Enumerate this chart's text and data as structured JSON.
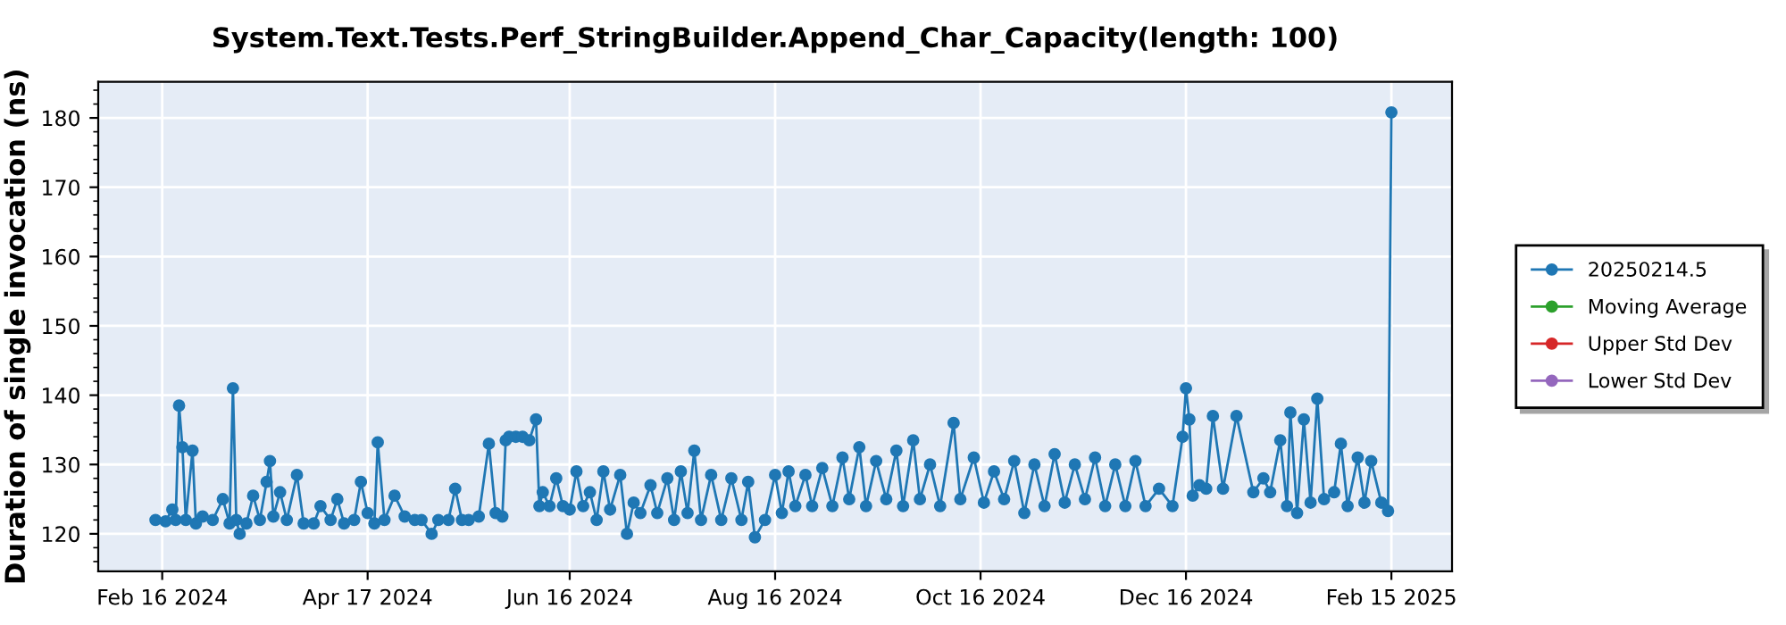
{
  "chart_data": {
    "type": "line",
    "title": "System.Text.Tests.Perf_StringBuilder.Append_Char_Capacity(length: 100)",
    "ylabel": "Duration of single invocation (ns)",
    "x": [
      "2024-02-14",
      "2024-02-17",
      "2024-02-19",
      "2024-02-20",
      "2024-02-21",
      "2024-02-22",
      "2024-02-23",
      "2024-02-25",
      "2024-02-26",
      "2024-02-28",
      "2024-03-02",
      "2024-03-05",
      "2024-03-07",
      "2024-03-08",
      "2024-03-09",
      "2024-03-10",
      "2024-03-12",
      "2024-03-14",
      "2024-03-16",
      "2024-03-18",
      "2024-03-19",
      "2024-03-20",
      "2024-03-22",
      "2024-03-24",
      "2024-03-27",
      "2024-03-29",
      "2024-04-01",
      "2024-04-03",
      "2024-04-06",
      "2024-04-08",
      "2024-04-10",
      "2024-04-13",
      "2024-04-15",
      "2024-04-17",
      "2024-04-19",
      "2024-04-20",
      "2024-04-22",
      "2024-04-25",
      "2024-04-28",
      "2024-05-01",
      "2024-05-03",
      "2024-05-06",
      "2024-05-08",
      "2024-05-11",
      "2024-05-13",
      "2024-05-15",
      "2024-05-17",
      "2024-05-20",
      "2024-05-23",
      "2024-05-25",
      "2024-05-27",
      "2024-05-28",
      "2024-05-29",
      "2024-05-31",
      "2024-06-02",
      "2024-06-04",
      "2024-06-06",
      "2024-06-07",
      "2024-06-08",
      "2024-06-10",
      "2024-06-12",
      "2024-06-14",
      "2024-06-16",
      "2024-06-18",
      "2024-06-20",
      "2024-06-22",
      "2024-06-24",
      "2024-06-26",
      "2024-06-28",
      "2024-07-01",
      "2024-07-03",
      "2024-07-05",
      "2024-07-07",
      "2024-07-10",
      "2024-07-12",
      "2024-07-15",
      "2024-07-17",
      "2024-07-19",
      "2024-07-21",
      "2024-07-23",
      "2024-07-25",
      "2024-07-28",
      "2024-07-31",
      "2024-08-03",
      "2024-08-06",
      "2024-08-08",
      "2024-08-10",
      "2024-08-13",
      "2024-08-16",
      "2024-08-18",
      "2024-08-20",
      "2024-08-22",
      "2024-08-25",
      "2024-08-27",
      "2024-08-30",
      "2024-09-02",
      "2024-09-05",
      "2024-09-07",
      "2024-09-10",
      "2024-09-12",
      "2024-09-15",
      "2024-09-18",
      "2024-09-21",
      "2024-09-23",
      "2024-09-26",
      "2024-09-28",
      "2024-10-01",
      "2024-10-04",
      "2024-10-08",
      "2024-10-10",
      "2024-10-14",
      "2024-10-17",
      "2024-10-20",
      "2024-10-23",
      "2024-10-26",
      "2024-10-29",
      "2024-11-01",
      "2024-11-04",
      "2024-11-07",
      "2024-11-10",
      "2024-11-13",
      "2024-11-16",
      "2024-11-19",
      "2024-11-22",
      "2024-11-25",
      "2024-11-28",
      "2024-12-01",
      "2024-12-04",
      "2024-12-08",
      "2024-12-12",
      "2024-12-15",
      "2024-12-16",
      "2024-12-17",
      "2024-12-18",
      "2024-12-20",
      "2024-12-22",
      "2024-12-24",
      "2024-12-27",
      "2024-12-31",
      "2025-01-05",
      "2025-01-08",
      "2025-01-10",
      "2025-01-13",
      "2025-01-15",
      "2025-01-16",
      "2025-01-18",
      "2025-01-20",
      "2025-01-22",
      "2025-01-24",
      "2025-01-26",
      "2025-01-29",
      "2025-01-31",
      "2025-02-02",
      "2025-02-05",
      "2025-02-07",
      "2025-02-09",
      "2025-02-12",
      "2025-02-14",
      "2025-02-15"
    ],
    "series": [
      {
        "name": "20250214.5",
        "color": "#1f77b4",
        "values": [
          122,
          121.8,
          123.5,
          122,
          138.5,
          132.5,
          122,
          132,
          121.5,
          122.5,
          122,
          125,
          121.5,
          141,
          122,
          120,
          121.5,
          125.5,
          122,
          127.5,
          130.5,
          122.5,
          126,
          122,
          128.5,
          121.5,
          121.5,
          124,
          122,
          125,
          121.5,
          122,
          127.5,
          123,
          121.5,
          133.2,
          122,
          125.5,
          122.5,
          122,
          122,
          120,
          122,
          122,
          126.5,
          122,
          122,
          122.5,
          133,
          123,
          122.5,
          133.5,
          134,
          134,
          134,
          133.5,
          136.5,
          124,
          126,
          124,
          128,
          124,
          123.5,
          129,
          124,
          126,
          122,
          129,
          123.5,
          128.5,
          120,
          124.5,
          123,
          127,
          123,
          128,
          122,
          129,
          123,
          132,
          122,
          128.5,
          122,
          128,
          122,
          127.5,
          119.5,
          122,
          128.5,
          123,
          129,
          124,
          128.5,
          124,
          129.5,
          124,
          131,
          125,
          132.5,
          124,
          130.5,
          125,
          132,
          124,
          133.5,
          125,
          130,
          124,
          136,
          125,
          131,
          124.5,
          129,
          125,
          130.5,
          123,
          130,
          124,
          131.5,
          124.5,
          130,
          125,
          131,
          124,
          130,
          124,
          130.5,
          124,
          126.5,
          124,
          134,
          141,
          136.5,
          125.5,
          127,
          126.5,
          137,
          126.5,
          137,
          126,
          128,
          126,
          133.5,
          124,
          137.5,
          123,
          136.5,
          124.5,
          139.5,
          125,
          126,
          133,
          124,
          131,
          124.5,
          130.5,
          124.5,
          123.3,
          180.8
        ]
      },
      {
        "name": "Moving Average",
        "color": "#2ca02c",
        "values": [
          null,
          null,
          null,
          null,
          null,
          null,
          null,
          null,
          null,
          null,
          null,
          null,
          null,
          null,
          null,
          null,
          null,
          null,
          null,
          null,
          null,
          null,
          null,
          null,
          null,
          null,
          null,
          null,
          null,
          null,
          null,
          null,
          null,
          null,
          null,
          null,
          null,
          null,
          null,
          null,
          null,
          null,
          null,
          null,
          null,
          null,
          null,
          null,
          null,
          null,
          null,
          null,
          null,
          null,
          null,
          null,
          null,
          null,
          null,
          null,
          null,
          null,
          null,
          null,
          null,
          null,
          null,
          null,
          null,
          null,
          null,
          null,
          null,
          null,
          null,
          null,
          null,
          null,
          null,
          null,
          null,
          null,
          null,
          null,
          null,
          null,
          null,
          null,
          null,
          null,
          null,
          null,
          null,
          null,
          null,
          null,
          null,
          null,
          null,
          null,
          null,
          null,
          null,
          null,
          null,
          null,
          null,
          null,
          null,
          null,
          null,
          null,
          null,
          null,
          null,
          null,
          null,
          null,
          null,
          null,
          null,
          null,
          null,
          null,
          null,
          null,
          null,
          null,
          null,
          null,
          null,
          null,
          null,
          null,
          null,
          null,
          null,
          null,
          null,
          null,
          null,
          null,
          null,
          null,
          null,
          null,
          null,
          null,
          null,
          null,
          null,
          null,
          null,
          null,
          null,
          null,
          null,
          null,
          null
        ]
      },
      {
        "name": "Upper Std Dev",
        "color": "#d62728",
        "values": [
          null,
          null,
          null,
          null,
          null,
          null,
          null,
          null,
          null,
          null,
          null,
          null,
          null,
          null,
          null,
          null,
          null,
          null,
          null,
          null,
          null,
          null,
          null,
          null,
          null,
          null,
          null,
          null,
          null,
          null,
          null,
          null,
          null,
          null,
          null,
          null,
          null,
          null,
          null,
          null,
          null,
          null,
          null,
          null,
          null,
          null,
          null,
          null,
          null,
          null,
          null,
          null,
          null,
          null,
          null,
          null,
          null,
          null,
          null,
          null,
          null,
          null,
          null,
          null,
          null,
          null,
          null,
          null,
          null,
          null,
          null,
          null,
          null,
          null,
          null,
          null,
          null,
          null,
          null,
          null,
          null,
          null,
          null,
          null,
          null,
          null,
          null,
          null,
          null,
          null,
          null,
          null,
          null,
          null,
          null,
          null,
          null,
          null,
          null,
          null,
          null,
          null,
          null,
          null,
          null,
          null,
          null,
          null,
          null,
          null,
          null,
          null,
          null,
          null,
          null,
          null,
          null,
          null,
          null,
          null,
          null,
          null,
          null,
          null,
          null,
          null,
          null,
          null,
          null,
          null,
          null,
          null,
          null,
          null,
          null,
          null,
          null,
          null,
          null,
          null,
          null,
          null,
          null,
          null,
          null,
          null,
          null,
          null,
          null,
          null,
          null,
          null,
          null,
          null,
          null,
          null,
          null,
          null,
          null
        ]
      },
      {
        "name": "Lower Std Dev",
        "color": "#9467bd",
        "values": [
          null,
          null,
          null,
          null,
          null,
          null,
          null,
          null,
          null,
          null,
          null,
          null,
          null,
          null,
          null,
          null,
          null,
          null,
          null,
          null,
          null,
          null,
          null,
          null,
          null,
          null,
          null,
          null,
          null,
          null,
          null,
          null,
          null,
          null,
          null,
          null,
          null,
          null,
          null,
          null,
          null,
          null,
          null,
          null,
          null,
          null,
          null,
          null,
          null,
          null,
          null,
          null,
          null,
          null,
          null,
          null,
          null,
          null,
          null,
          null,
          null,
          null,
          null,
          null,
          null,
          null,
          null,
          null,
          null,
          null,
          null,
          null,
          null,
          null,
          null,
          null,
          null,
          null,
          null,
          null,
          null,
          null,
          null,
          null,
          null,
          null,
          null,
          null,
          null,
          null,
          null,
          null,
          null,
          null,
          null,
          null,
          null,
          null,
          null,
          null,
          null,
          null,
          null,
          null,
          null,
          null,
          null,
          null,
          null,
          null,
          null,
          null,
          null,
          null,
          null,
          null,
          null,
          null,
          null,
          null,
          null,
          null,
          null,
          null,
          null,
          null,
          null,
          null,
          null,
          null,
          null,
          null,
          null,
          null,
          null,
          null,
          null,
          null,
          null,
          null,
          null,
          null,
          null,
          null,
          null,
          null,
          null,
          null,
          null,
          null,
          null,
          null,
          null,
          null,
          null,
          null,
          null,
          null,
          null
        ]
      }
    ],
    "xlim": [
      "2024-01-28",
      "2025-03-05"
    ],
    "xticks": [
      {
        "value": "2024-02-16",
        "label": "Feb 16 2024"
      },
      {
        "value": "2024-04-17",
        "label": "Apr 17 2024"
      },
      {
        "value": "2024-06-16",
        "label": "Jun 16 2024"
      },
      {
        "value": "2024-08-16",
        "label": "Aug 16 2024"
      },
      {
        "value": "2024-10-16",
        "label": "Oct 16 2024"
      },
      {
        "value": "2024-12-16",
        "label": "Dec 16 2024"
      },
      {
        "value": "2025-02-15",
        "label": "Feb 15 2025"
      }
    ],
    "ylim": [
      114.6,
      185.2
    ],
    "yticks": [
      120,
      130,
      140,
      150,
      160,
      170,
      180
    ],
    "grid": true,
    "legend": "right",
    "marker": "circle",
    "line_style": "solid"
  }
}
